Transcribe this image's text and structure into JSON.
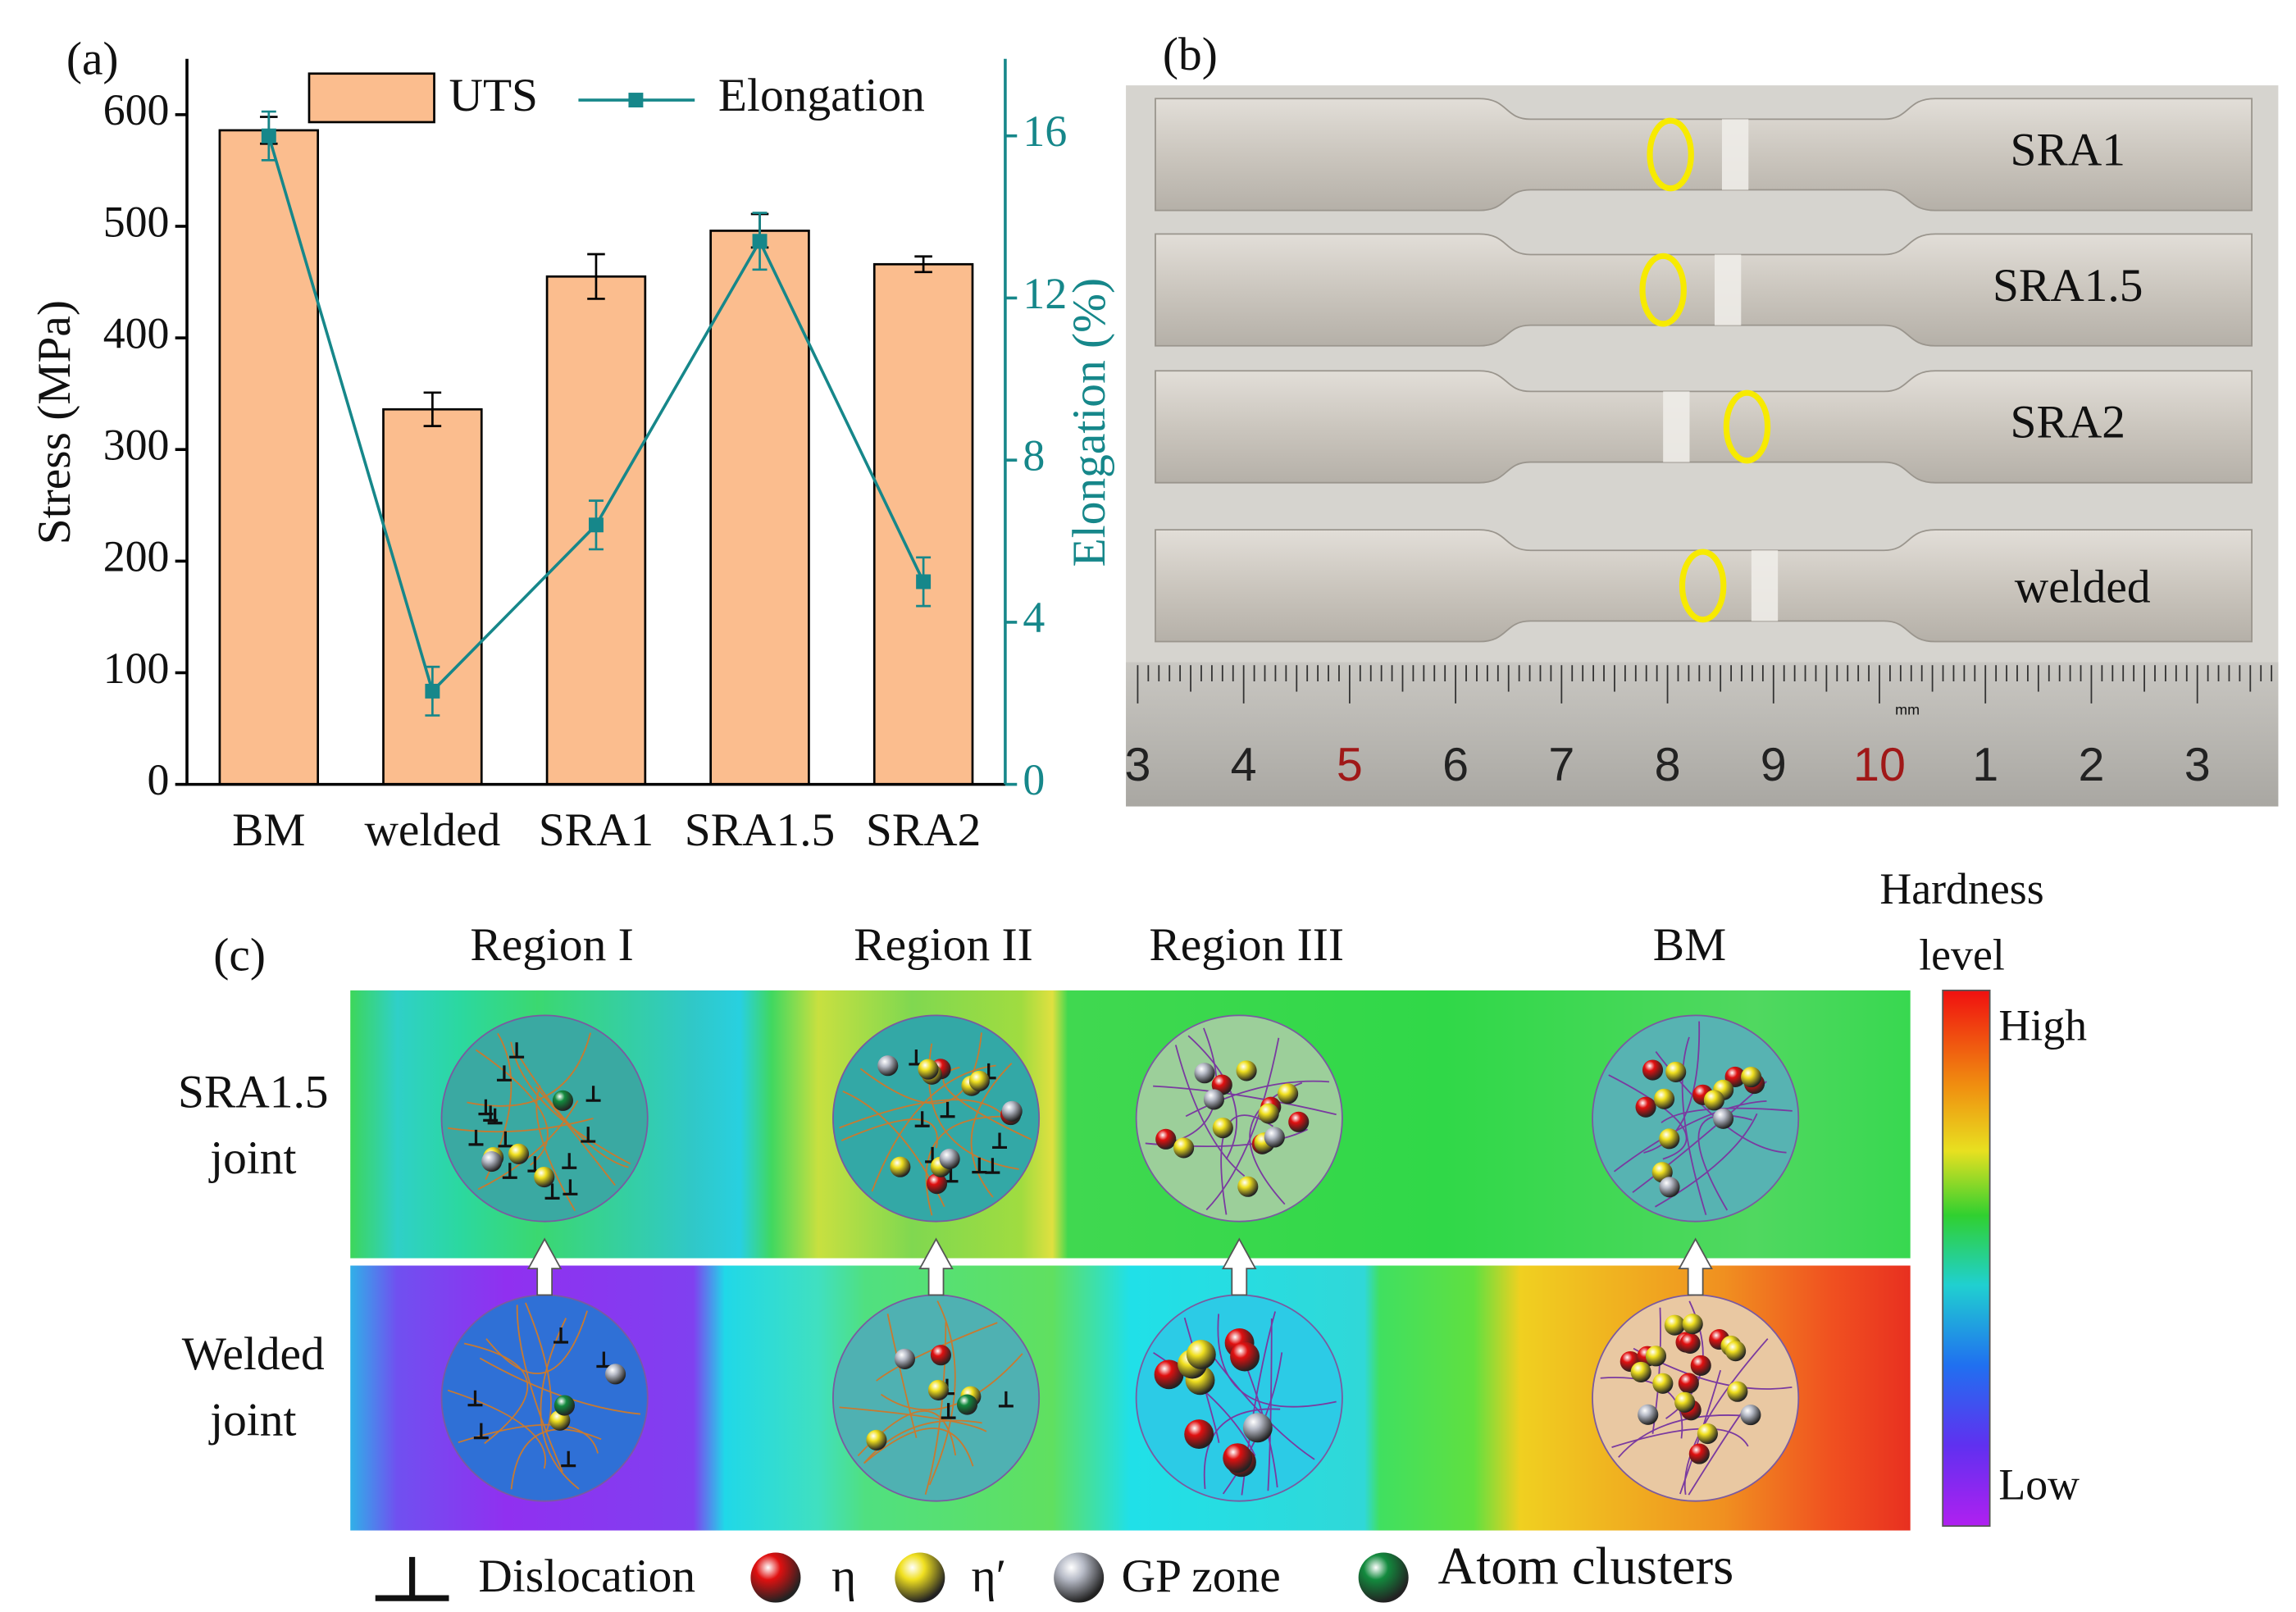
{
  "chart_data": {
    "type": "bar",
    "panel_label": "(a)",
    "ylabel": "Stress (MPa)",
    "y2label": "Elongation (%)",
    "categories": [
      "BM",
      "welded",
      "SRA1",
      "SRA1.5",
      "SRA2"
    ],
    "series": [
      {
        "name": "UTS",
        "type": "bar",
        "color": "#fbbd8e",
        "values": [
          586,
          336,
          455,
          496,
          466
        ],
        "errors": [
          12,
          15,
          20,
          15,
          7
        ]
      },
      {
        "name": "Elongation",
        "type": "line",
        "axis": "y2",
        "color": "#16878a",
        "values": [
          16.0,
          2.3,
          6.4,
          13.4,
          5.0
        ],
        "errors": [
          0.6,
          0.6,
          0.6,
          0.7,
          0.6
        ]
      }
    ],
    "ylim": [
      0,
      650
    ],
    "yticks": [
      0,
      100,
      200,
      300,
      400,
      500,
      600
    ],
    "y2lim": [
      0,
      17.9
    ],
    "y2ticks": [
      0,
      4,
      8,
      12,
      16
    ]
  },
  "photo": {
    "panel_label": "(b)",
    "specimens": [
      "SRA1",
      "SRA1.5",
      "SRA2",
      "welded"
    ],
    "ruler": [
      "3",
      "4",
      "5",
      "6",
      "7",
      "8",
      "9",
      "10",
      "1",
      "2",
      "3"
    ],
    "ruler_colors": [
      "#222",
      "#222",
      "#a01818",
      "#222",
      "#222",
      "#222",
      "#222",
      "#a01818",
      "#222",
      "#222",
      "#222"
    ],
    "ruler_unit": "mm"
  },
  "diagram": {
    "panel_label": "(c)",
    "regions": [
      "Region I",
      "Region II",
      "Region III",
      "BM"
    ],
    "rows": [
      [
        "SRA1.5",
        "joint"
      ],
      [
        "Welded",
        "joint"
      ]
    ],
    "colorbar": {
      "title": [
        "Hardness",
        "level"
      ],
      "high": "High",
      "low": "Low"
    },
    "legend": [
      {
        "name": "Dislocation",
        "color": "#111111"
      },
      {
        "name": "η",
        "color": "#e01010"
      },
      {
        "name": "η′",
        "color": "#f0e020"
      },
      {
        "name": "GP zone",
        "color": "#b8bcc8"
      },
      {
        "name": "Atom clusters",
        "color": "#138a3e"
      }
    ]
  }
}
